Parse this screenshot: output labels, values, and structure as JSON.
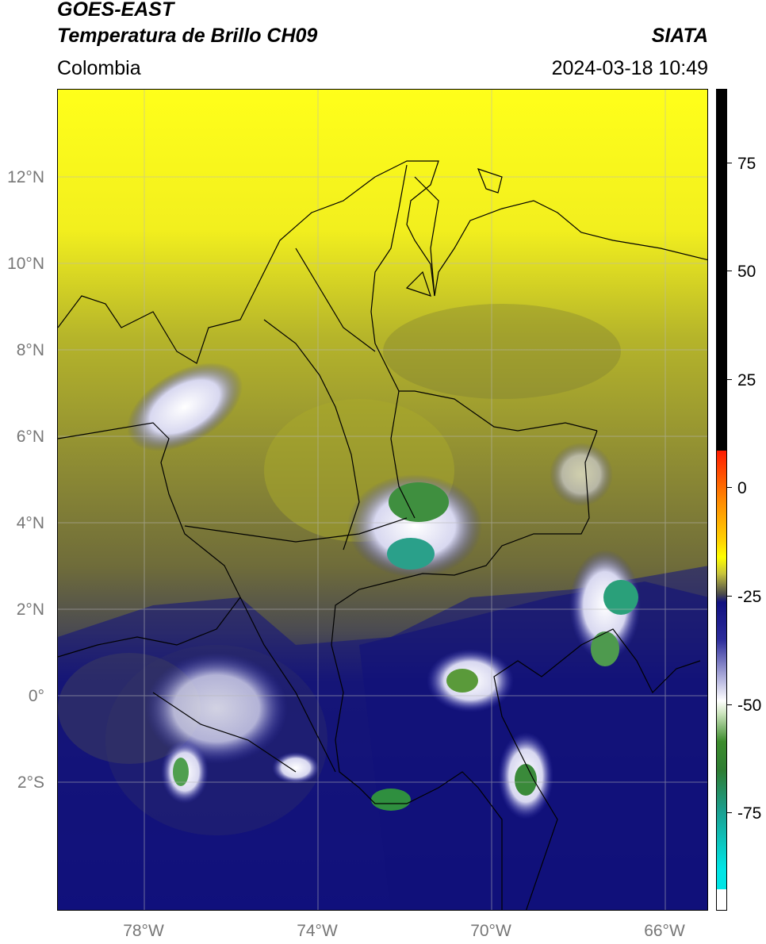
{
  "header": {
    "title_line1": "GOES-EAST",
    "title_line2": "Temperatura de Brillo CH09",
    "region": "Colombia",
    "source": "SIATA",
    "timestamp": "2024-03-18 10:49"
  },
  "map": {
    "lat_labels": [
      "12°N",
      "10°N",
      "8°N",
      "6°N",
      "4°N",
      "2°N",
      "0°",
      "2°S"
    ],
    "lon_labels": [
      "78°W",
      "74°W",
      "70°W",
      "66°W"
    ]
  },
  "colorbar": {
    "tick_labels": [
      "75",
      "50",
      "25",
      "0",
      "-25",
      "-50",
      "-75"
    ],
    "colors": [
      "#000000",
      "#ff0000",
      "#ffff00",
      "#3a3a3a",
      "#000080",
      "#ffffff",
      "#2e7d32",
      "#00e5e5"
    ]
  }
}
